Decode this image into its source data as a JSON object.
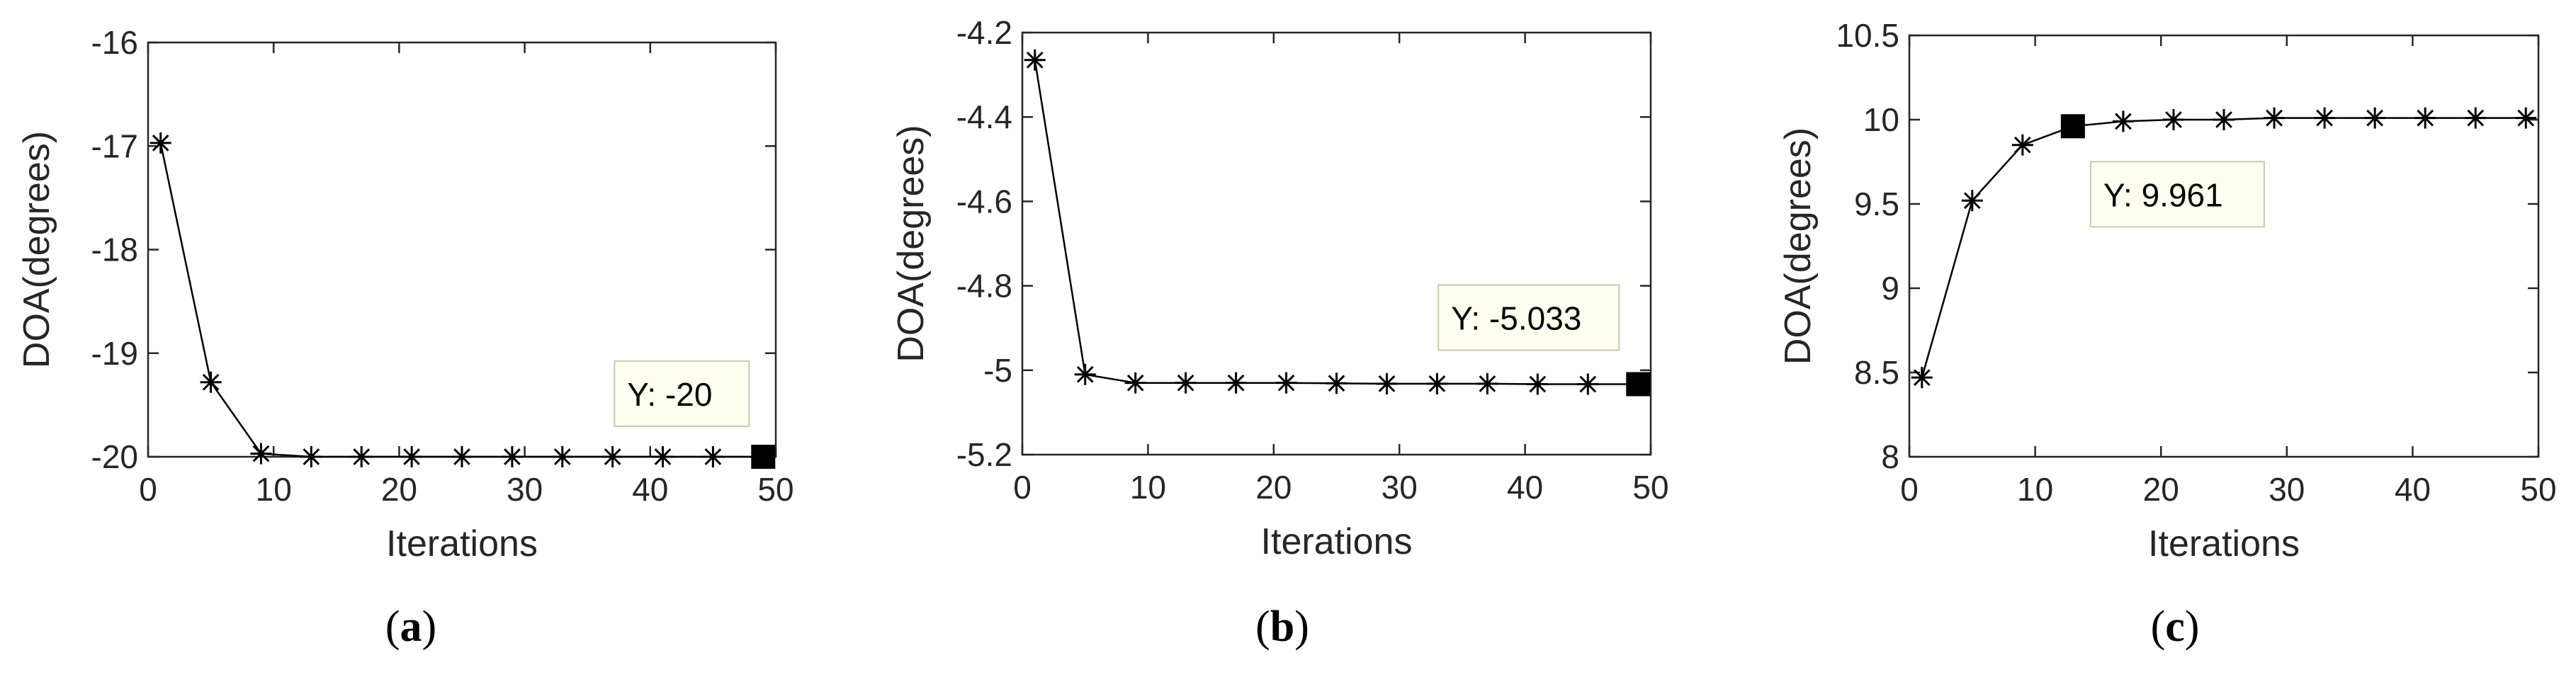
{
  "chart_data": [
    {
      "type": "line",
      "panel": "a",
      "xlabel": "Iterations",
      "ylabel": "DOA(degrees)",
      "xlim": [
        0,
        50
      ],
      "ylim": [
        -20,
        -16
      ],
      "xticks": [
        0,
        10,
        20,
        30,
        40,
        50
      ],
      "xtick_labels": [
        "0",
        "10",
        "20",
        "30",
        "40",
        "50"
      ],
      "yticks": [
        -20,
        -19,
        -18,
        -17,
        -16
      ],
      "ytick_labels": [
        "-20",
        "-19",
        "-18",
        "-17",
        "-16"
      ],
      "grid": false,
      "series": [
        {
          "marker": "asterisk",
          "x": [
            1,
            5,
            9,
            13,
            17,
            21,
            25,
            29,
            33,
            37,
            41,
            45,
            49
          ],
          "y": [
            -16.97,
            -19.28,
            -19.97,
            -20,
            -20,
            -20,
            -20,
            -20,
            -20,
            -20,
            -20,
            -20,
            -20
          ]
        }
      ],
      "datatip": {
        "x": 49,
        "y": -20,
        "label": "Y: -20"
      },
      "caption": {
        "open": "(",
        "letter": "a",
        "close": ")"
      }
    },
    {
      "type": "line",
      "panel": "b",
      "xlabel": "Iterations",
      "ylabel": "DOA(degrees)",
      "xlim": [
        0,
        50
      ],
      "ylim": [
        -5.2,
        -4.2
      ],
      "xticks": [
        0,
        10,
        20,
        30,
        40,
        50
      ],
      "xtick_labels": [
        "0",
        "10",
        "20",
        "30",
        "40",
        "50"
      ],
      "yticks": [
        -5.2,
        -5,
        -4.8,
        -4.6,
        -4.4,
        -4.2
      ],
      "ytick_labels": [
        "-5.2",
        "-5",
        "-4.8",
        "-4.6",
        "-4.4",
        "-4.2"
      ],
      "grid": false,
      "series": [
        {
          "marker": "asterisk",
          "x": [
            1,
            5,
            9,
            13,
            17,
            21,
            25,
            29,
            33,
            37,
            41,
            45,
            49
          ],
          "y": [
            -4.265,
            -5.01,
            -5.03,
            -5.03,
            -5.03,
            -5.03,
            -5.031,
            -5.032,
            -5.032,
            -5.032,
            -5.033,
            -5.033,
            -5.033
          ]
        }
      ],
      "datatip": {
        "x": 49,
        "y": -5.033,
        "label": "Y: -5.033"
      },
      "caption": {
        "open": "(",
        "letter": "b",
        "close": ")"
      }
    },
    {
      "type": "line",
      "panel": "c",
      "xlabel": "Iterations",
      "ylabel": "DOA(degrees)",
      "xlim": [
        0,
        50
      ],
      "ylim": [
        8,
        10.5
      ],
      "xticks": [
        0,
        10,
        20,
        30,
        40,
        50
      ],
      "xtick_labels": [
        "0",
        "10",
        "20",
        "30",
        "40",
        "50"
      ],
      "yticks": [
        8,
        8.5,
        9,
        9.5,
        10,
        10.5
      ],
      "ytick_labels": [
        "8",
        "8.5",
        "9",
        "9.5",
        "10",
        "10.5"
      ],
      "grid": false,
      "series": [
        {
          "marker": "asterisk",
          "x": [
            1,
            5,
            9,
            13,
            17,
            21,
            25,
            29,
            33,
            37,
            41,
            45,
            49
          ],
          "y": [
            8.47,
            9.52,
            9.85,
            9.961,
            9.99,
            10,
            10,
            10.01,
            10.01,
            10.01,
            10.01,
            10.01,
            10.01
          ]
        }
      ],
      "datatip": {
        "x": 13,
        "y": 9.961,
        "label": "Y: 9.961"
      },
      "caption": {
        "open": "(",
        "letter": "c",
        "close": ")"
      }
    }
  ]
}
